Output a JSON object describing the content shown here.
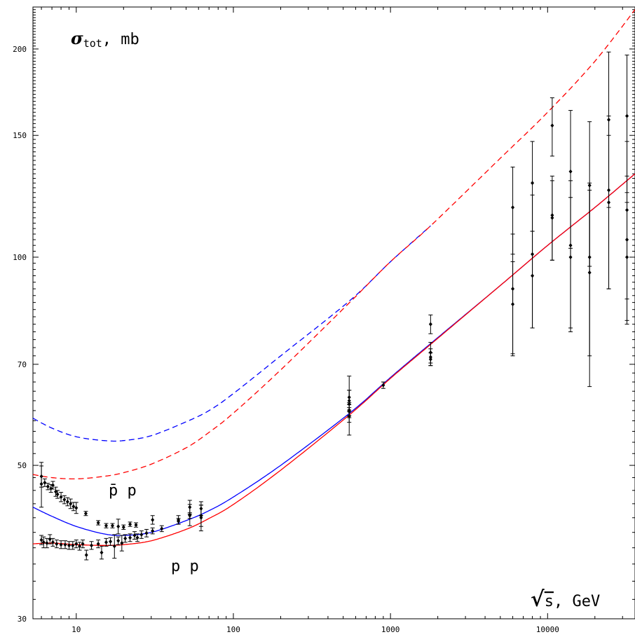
{
  "chart_data": {
    "type": "scatter",
    "ylabel": "σtot, mb",
    "ylabel_parts": {
      "symbol": "σ",
      "subscript": "tot",
      "rest": ", mb"
    },
    "xlabel": "√s, GeV",
    "xlabel_parts": {
      "radical": "√",
      "var": "s",
      "rest": ", GeV"
    },
    "x_scale": "log",
    "y_scale": "log",
    "xlim": [
      5.3,
      36000
    ],
    "ylim": [
      30,
      230
    ],
    "x_ticks": [
      10,
      100,
      1000,
      10000
    ],
    "x_tick_labels": [
      "10",
      "100",
      "1000",
      "10000"
    ],
    "y_ticks": [
      30,
      50,
      70,
      100,
      150,
      200
    ],
    "y_tick_labels": [
      "30",
      "50",
      "70",
      "100",
      "150",
      "200"
    ],
    "annotations": {
      "pbar_p": "p̄ p",
      "p_p": "p p"
    },
    "grid": false,
    "legend": "none",
    "colors": {
      "pbar_p": "#0000ff",
      "p_p": "#ff0000",
      "data": "#000000"
    },
    "series": [
      {
        "line": "solid",
        "color": "#0000ff",
        "x": [
          5.3,
          7,
          10,
          15,
          20,
          30,
          50,
          70,
          100,
          200,
          550,
          1000,
          1800,
          5000,
          10000,
          20000,
          36000
        ],
        "y": [
          43.5,
          42.2,
          40.8,
          39.8,
          39.6,
          40.0,
          41.6,
          43.0,
          45.0,
          50.0,
          59.5,
          67.0,
          75.0,
          91.0,
          104.0,
          118.0,
          132.0
        ]
      },
      {
        "line": "solid",
        "color": "#ff0000",
        "x": [
          5.3,
          7,
          10,
          15,
          20,
          30,
          50,
          70,
          100,
          200,
          550,
          1000,
          1800,
          5000,
          10000,
          20000,
          36000
        ],
        "y": [
          38.5,
          38.6,
          38.4,
          38.3,
          38.4,
          38.9,
          40.4,
          41.9,
          43.9,
          49.2,
          59.2,
          66.8,
          74.8,
          91.0,
          104.0,
          118.0,
          132.0
        ]
      },
      {
        "line": "dashed",
        "color": "#0000ff",
        "x": [
          5.3,
          7,
          10,
          15,
          20,
          30,
          50,
          70,
          100,
          200,
          550,
          1000,
          1800
        ],
        "y": [
          58.5,
          56.6,
          55.0,
          54.3,
          54.3,
          55.2,
          57.8,
          60.0,
          63.5,
          72.0,
          86.5,
          98.5,
          111.0
        ]
      },
      {
        "line": "dashed",
        "color": "#ff0000",
        "x": [
          5.3,
          7,
          10,
          15,
          20,
          30,
          50,
          70,
          100,
          200,
          550,
          1000,
          1800,
          5000,
          10000,
          20000,
          36000
        ],
        "y": [
          48.5,
          48.0,
          47.8,
          48.2,
          48.8,
          50.2,
          53.0,
          55.8,
          59.5,
          68.7,
          86.0,
          98.5,
          111.0,
          139.0,
          162.0,
          192.0,
          228.0
        ]
      }
    ],
    "points": [
      {
        "x": 6.0,
        "y": 48.2,
        "err": 1.7
      },
      {
        "x": 6.0,
        "y": 47.0,
        "err": 3.5
      },
      {
        "x": 6.3,
        "y": 47.2,
        "err": 0.6
      },
      {
        "x": 6.6,
        "y": 46.6,
        "err": 0.5
      },
      {
        "x": 6.9,
        "y": 46.3,
        "err": 0.6
      },
      {
        "x": 7.1,
        "y": 46.8,
        "err": 0.6
      },
      {
        "x": 7.4,
        "y": 45.8,
        "err": 0.7
      },
      {
        "x": 7.6,
        "y": 45.4,
        "err": 0.6
      },
      {
        "x": 8.0,
        "y": 45.0,
        "err": 0.7
      },
      {
        "x": 8.4,
        "y": 44.6,
        "err": 0.6
      },
      {
        "x": 8.8,
        "y": 44.3,
        "err": 0.6
      },
      {
        "x": 9.2,
        "y": 44.0,
        "err": 0.7
      },
      {
        "x": 9.6,
        "y": 43.6,
        "err": 0.6
      },
      {
        "x": 10.0,
        "y": 43.4,
        "err": 0.8
      },
      {
        "x": 11.5,
        "y": 42.6,
        "err": 0.3
      },
      {
        "x": 13.8,
        "y": 41.3,
        "err": 0.3
      },
      {
        "x": 15.5,
        "y": 40.9,
        "err": 0.3
      },
      {
        "x": 17.0,
        "y": 40.9,
        "err": 0.3
      },
      {
        "x": 18.5,
        "y": 40.8,
        "err": 1.0
      },
      {
        "x": 20.0,
        "y": 40.7,
        "err": 0.3
      },
      {
        "x": 22.0,
        "y": 41.1,
        "err": 0.3
      },
      {
        "x": 24.0,
        "y": 41.0,
        "err": 0.3
      },
      {
        "x": 30.6,
        "y": 41.7,
        "err": 0.6
      },
      {
        "x": 44.7,
        "y": 41.7,
        "err": 0.6
      },
      {
        "x": 52.8,
        "y": 42.4,
        "err": 1.5
      },
      {
        "x": 52.8,
        "y": 43.5,
        "err": 1.0
      },
      {
        "x": 62.3,
        "y": 43.3,
        "err": 1.0
      },
      {
        "x": 62.3,
        "y": 42.3,
        "err": 1.5
      },
      {
        "x": 6.0,
        "y": 39.0,
        "err": 0.6
      },
      {
        "x": 6.2,
        "y": 38.7,
        "err": 0.7
      },
      {
        "x": 6.5,
        "y": 38.6,
        "err": 0.6
      },
      {
        "x": 6.8,
        "y": 39.1,
        "err": 0.6
      },
      {
        "x": 7.1,
        "y": 38.7,
        "err": 0.5
      },
      {
        "x": 7.5,
        "y": 38.5,
        "err": 0.5
      },
      {
        "x": 8.0,
        "y": 38.4,
        "err": 0.5
      },
      {
        "x": 8.5,
        "y": 38.4,
        "err": 0.5
      },
      {
        "x": 9.0,
        "y": 38.3,
        "err": 0.5
      },
      {
        "x": 9.5,
        "y": 38.3,
        "err": 0.5
      },
      {
        "x": 10.0,
        "y": 38.5,
        "err": 0.5
      },
      {
        "x": 10.5,
        "y": 38.2,
        "err": 0.5
      },
      {
        "x": 11.0,
        "y": 38.5,
        "err": 0.5
      },
      {
        "x": 11.6,
        "y": 37.1,
        "err": 0.6
      },
      {
        "x": 12.5,
        "y": 38.3,
        "err": 0.5
      },
      {
        "x": 13.8,
        "y": 38.5,
        "err": 0.5
      },
      {
        "x": 14.5,
        "y": 37.4,
        "err": 0.8
      },
      {
        "x": 15.5,
        "y": 38.7,
        "err": 0.5
      },
      {
        "x": 16.5,
        "y": 38.8,
        "err": 0.5
      },
      {
        "x": 17.5,
        "y": 38.2,
        "err": 1.5
      },
      {
        "x": 18.5,
        "y": 38.9,
        "err": 0.5
      },
      {
        "x": 19.5,
        "y": 38.6,
        "err": 1.0
      },
      {
        "x": 20.5,
        "y": 39.2,
        "err": 0.5
      },
      {
        "x": 22.0,
        "y": 39.3,
        "err": 0.5
      },
      {
        "x": 23.5,
        "y": 39.6,
        "err": 0.5
      },
      {
        "x": 24.5,
        "y": 39.3,
        "err": 0.5
      },
      {
        "x": 26.0,
        "y": 39.7,
        "err": 0.5
      },
      {
        "x": 28.0,
        "y": 39.9,
        "err": 0.5
      },
      {
        "x": 30.6,
        "y": 40.2,
        "err": 0.4
      },
      {
        "x": 35.0,
        "y": 40.5,
        "err": 0.4
      },
      {
        "x": 44.7,
        "y": 41.5,
        "err": 0.4
      },
      {
        "x": 52.8,
        "y": 42.3,
        "err": 0.4
      },
      {
        "x": 62.3,
        "y": 42.0,
        "err": 1.8
      },
      {
        "x": 546,
        "y": 62.7,
        "err": 1.5
      },
      {
        "x": 546,
        "y": 62.0,
        "err": 2.2
      },
      {
        "x": 546,
        "y": 60.1,
        "err": 1.5
      },
      {
        "x": 546,
        "y": 58.9,
        "err": 1.2
      },
      {
        "x": 546,
        "y": 59.8,
        "err": 0.8
      },
      {
        "x": 546,
        "y": 61.3,
        "err": 6.0
      },
      {
        "x": 900,
        "y": 65.3,
        "err": 0.7
      },
      {
        "x": 1800,
        "y": 72.8,
        "err": 2.5
      },
      {
        "x": 1800,
        "y": 71.7,
        "err": 2.0
      },
      {
        "x": 1800,
        "y": 80.0,
        "err": 2.5
      },
      {
        "x": 1800,
        "y": 71.2,
        "err": 1.5
      },
      {
        "x": 6000,
        "y": 118.0,
        "err": 17.0
      },
      {
        "x": 6000,
        "y": 90.0,
        "err": 18.0
      },
      {
        "x": 6000,
        "y": 85.5,
        "err": 13.0
      },
      {
        "x": 8000,
        "y": 128.0,
        "err": 19.0
      },
      {
        "x": 8000,
        "y": 101.0,
        "err": 22.0
      },
      {
        "x": 8000,
        "y": 94.0,
        "err": 15.0
      },
      {
        "x": 10700,
        "y": 155.0,
        "err": 15.0
      },
      {
        "x": 10700,
        "y": 115.0,
        "err": 16.0
      },
      {
        "x": 10700,
        "y": 114.0,
        "err": 15.0
      },
      {
        "x": 14000,
        "y": 133.0,
        "err": 30.0
      },
      {
        "x": 14000,
        "y": 104.0,
        "err": 25.0
      },
      {
        "x": 14000,
        "y": 100.0,
        "err": 22.0
      },
      {
        "x": 18500,
        "y": 127.0,
        "err": 30.0
      },
      {
        "x": 18500,
        "y": 100.0,
        "err": 28.0
      },
      {
        "x": 18500,
        "y": 95.0,
        "err": 30.0
      },
      {
        "x": 24500,
        "y": 158.0,
        "err": 40.0
      },
      {
        "x": 24500,
        "y": 125.0,
        "err": 35.0
      },
      {
        "x": 24500,
        "y": 120.0,
        "err": 30.0
      },
      {
        "x": 32000,
        "y": 160.0,
        "err": 36.0
      },
      {
        "x": 32000,
        "y": 117.0,
        "err": 30.0
      },
      {
        "x": 32000,
        "y": 106.0,
        "err": 25.0
      },
      {
        "x": 32000,
        "y": 100.0,
        "err": 20.0
      }
    ]
  }
}
